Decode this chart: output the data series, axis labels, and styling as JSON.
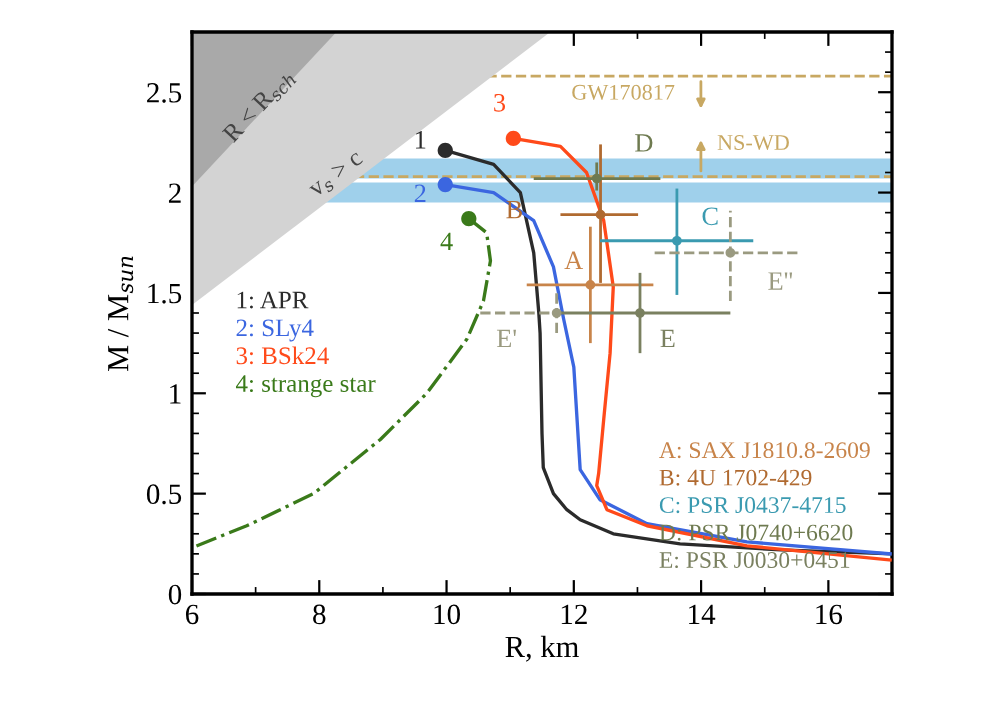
{
  "chart_data": {
    "type": "line",
    "xlabel": "R, km",
    "ylabel": "M / M$_{sun}$",
    "xlim": [
      6,
      17
    ],
    "ylim": [
      0,
      2.8
    ],
    "xticks": [
      6,
      8,
      10,
      12,
      14,
      16
    ],
    "yticks": [
      0,
      0.5,
      1,
      1.5,
      2,
      2.5
    ],
    "grid": false,
    "legend": "bottom right",
    "bands": [
      {
        "axis": "y",
        "from": 2.07,
        "to": 2.17,
        "color": "#9fd0eb"
      },
      {
        "axis": "y",
        "from": 1.95,
        "to": 2.05,
        "color": "#9fd0eb"
      }
    ],
    "ref_lines": [
      {
        "axis": "y",
        "value": 2.58,
        "label": "GW170817",
        "color": "#c8a862",
        "line_style": "dashed"
      },
      {
        "axis": "y",
        "value": 2.08,
        "label": "NS-WD",
        "color": "#c8a862",
        "line_style": "dashed"
      }
    ],
    "series": [
      {
        "type": "area",
        "x": [
          6,
          11.63
        ],
        "values": [
          1.44,
          2.8
        ],
        "color": "#d3d3d3"
      },
      {
        "type": "area",
        "x": [
          6,
          8.27
        ],
        "values": [
          2.03,
          2.8
        ],
        "color": "#a9a9a9"
      },
      {
        "name": "1: APR",
        "color": "#2b2b2b",
        "x": [
          9.98,
          10.74,
          11.16,
          11.37,
          11.45,
          11.47,
          11.5,
          11.52,
          11.68,
          11.89,
          12.1,
          12.62,
          13.67,
          15.25,
          16.97
        ],
        "values": [
          2.21,
          2.14,
          2.0,
          1.7,
          1.4,
          1.3,
          0.8,
          0.63,
          0.5,
          0.42,
          0.37,
          0.3,
          0.25,
          0.22,
          0.2
        ]
      },
      {
        "name": "2: SLy4",
        "color": "#3b66e0",
        "x": [
          9.98,
          10.74,
          11.37,
          11.68,
          11.84,
          12.0,
          12.1,
          12.41,
          13.15,
          14.72,
          16.97
        ],
        "values": [
          2.04,
          2.0,
          1.86,
          1.63,
          1.37,
          1.13,
          0.62,
          0.47,
          0.35,
          0.26,
          0.2
        ]
      },
      {
        "name": "3: BSk24",
        "color": "#ff4a1a",
        "x": [
          11.05,
          11.79,
          12.2,
          12.47,
          12.62,
          12.57,
          12.47,
          12.39,
          12.36,
          12.52,
          13.15,
          14.72,
          16.97
        ],
        "values": [
          2.27,
          2.23,
          2.1,
          1.86,
          1.53,
          1.2,
          0.87,
          0.6,
          0.54,
          0.42,
          0.34,
          0.24,
          0.17
        ]
      },
      {
        "name": "4: strange star",
        "color": "#3a7a1a",
        "line_style": "dashdot",
        "x": [
          10.35,
          10.63,
          10.69,
          10.58,
          10.32,
          9.69,
          8.96,
          7.91,
          6.86,
          6.0
        ],
        "values": [
          1.87,
          1.8,
          1.66,
          1.46,
          1.27,
          1.0,
          0.77,
          0.5,
          0.34,
          0.23
        ]
      },
      {
        "type": "scatter",
        "color": "#2b2b2b",
        "x": [
          9.98
        ],
        "values": [
          2.21
        ]
      },
      {
        "type": "scatter",
        "color": "#3b66e0",
        "x": [
          9.98
        ],
        "values": [
          2.04
        ]
      },
      {
        "type": "scatter",
        "color": "#ff4a1a",
        "x": [
          11.05
        ],
        "values": [
          2.27
        ]
      },
      {
        "type": "scatter",
        "color": "#3a7a1a",
        "x": [
          10.35
        ],
        "values": [
          1.87
        ]
      },
      {
        "type": "scatter",
        "name": "A: SAX J1810.8-2609",
        "color": "#c8844a",
        "x": [
          12.26
        ],
        "values": [
          1.54
        ],
        "errors": [
          [
            1.25,
            1.83
          ]
        ],
        "xerrors": [
          [
            11.26,
            13.25
          ]
        ]
      },
      {
        "type": "scatter",
        "name": "B: 4U 1702-429",
        "color": "#b06a30",
        "x": [
          12.42
        ],
        "values": [
          1.89
        ],
        "errors": [
          [
            1.55,
            2.24
          ]
        ],
        "xerrors": [
          [
            11.79,
            13.01
          ]
        ]
      },
      {
        "type": "scatter",
        "name": "C: PSR J0437-4715",
        "color": "#3a9ab0",
        "x": [
          13.62
        ],
        "values": [
          1.76
        ],
        "errors": [
          [
            1.49,
            2.02
          ]
        ],
        "xerrors": [
          [
            12.41,
            14.82
          ]
        ]
      },
      {
        "type": "scatter",
        "name": "D: PSR J0740+6620",
        "color": "#6e7a50",
        "x": [
          12.36
        ],
        "values": [
          2.07
        ],
        "errors": [
          [
            2.01,
            2.15
          ]
        ],
        "xerrors": [
          [
            11.37,
            13.36
          ]
        ]
      },
      {
        "type": "scatter",
        "name": "E: PSR J0030+0451",
        "color": "#7a8060",
        "x": [
          13.04
        ],
        "values": [
          1.4
        ],
        "errors": [
          [
            1.2,
            1.6
          ]
        ],
        "xerrors": [
          [
            11.73,
            14.46
          ]
        ]
      },
      {
        "type": "scatter",
        "color": "#9a9a80",
        "line_style": "dashed",
        "x": [
          11.73
        ],
        "values": [
          1.4
        ],
        "errors": [
          [
            1.3,
            1.5
          ]
        ],
        "xerrors": [
          [
            10.53,
            11.73
          ]
        ]
      },
      {
        "type": "scatter",
        "color": "#9a9a80",
        "line_style": "dashed",
        "x": [
          14.46
        ],
        "values": [
          1.7
        ],
        "errors": [
          [
            1.46,
            1.91
          ]
        ],
        "xerrors": [
          [
            13.27,
            15.56
          ]
        ]
      }
    ],
    "annotations": [
      {
        "text": "1",
        "x": 9.98,
        "y": 2.21
      },
      {
        "text": "2",
        "x": 9.98,
        "y": 2.04
      },
      {
        "text": "3",
        "x": 11.05,
        "y": 2.27
      },
      {
        "text": "4",
        "x": 10.35,
        "y": 1.87
      },
      {
        "text": "A",
        "x": 12.26,
        "y": 1.54
      },
      {
        "text": "B",
        "x": 12.42,
        "y": 1.89
      },
      {
        "text": "C",
        "x": 13.62,
        "y": 1.76
      },
      {
        "text": "D",
        "x": 12.36,
        "y": 2.07
      },
      {
        "text": "E",
        "x": 13.04,
        "y": 1.4
      },
      {
        "text": "E'",
        "x": 11.73,
        "y": 1.4
      },
      {
        "text": "E''",
        "x": 14.46,
        "y": 1.7
      },
      {
        "text": "R < R$_{sch}$",
        "x": 7.07,
        "y": 2.43
      },
      {
        "text": "v$_{s}$ > c",
        "x": 8.27,
        "y": 2.09
      }
    ]
  }
}
